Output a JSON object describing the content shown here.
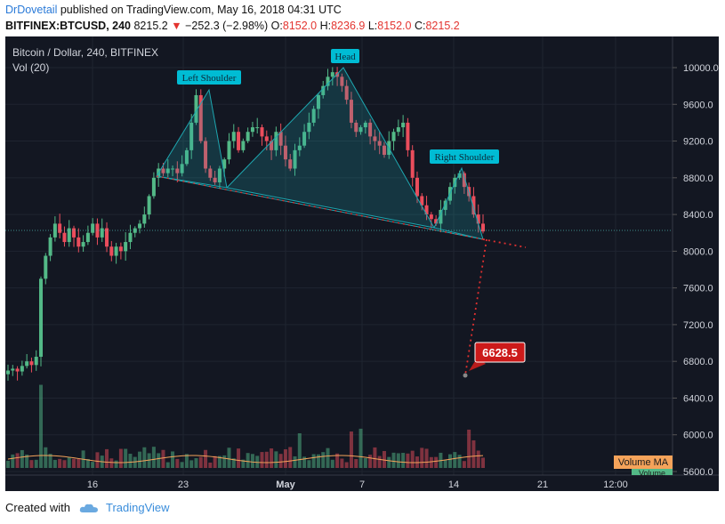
{
  "header": {
    "author": "DrDovetail",
    "published_text": "published on TradingView.com, May 16, 2018 04:31 UTC",
    "symbol": "BITFINEX:BTCUSD, 240",
    "last": "8215.2",
    "change": "−252.3 (−2.98%)",
    "o_label": "O:",
    "o_val": "8152.0",
    "h_label": "H:",
    "h_val": "8236.9",
    "l_label": "L:",
    "l_val": "8152.0",
    "c_label": "C:",
    "c_val": "8215.2"
  },
  "chart_data": {
    "type": "candlestick",
    "title": "Bitcoin / Dollar, 240, BITFINEX",
    "volume_label": "Vol (20)",
    "ylim": [
      5600,
      10400
    ],
    "y_ticks": [
      "10000.0",
      "9600.0",
      "9200.0",
      "8800.0",
      "8400.0",
      "8000.0",
      "7600.0",
      "7200.0",
      "6800.0",
      "6400.0",
      "6000.0",
      "5600.0"
    ],
    "x_ticks": [
      "16",
      "23",
      "May",
      "7",
      "14",
      "21",
      "12:00"
    ],
    "last_price": 8215.2,
    "approx_close_path": [
      6700,
      6720,
      6690,
      6750,
      6800,
      6760,
      6850,
      7700,
      7950,
      8150,
      8300,
      8200,
      8100,
      8250,
      8150,
      8050,
      8100,
      8200,
      8300,
      8150,
      8250,
      8050,
      7950,
      8050,
      8000,
      8100,
      8200,
      8250,
      8300,
      8400,
      8600,
      8800,
      8900,
      8850,
      8900,
      8900,
      8850,
      8950,
      9100,
      9400,
      9700,
      9200,
      8900,
      8800,
      8750,
      8900,
      9000,
      9200,
      9300,
      9100,
      9200,
      9300,
      9350,
      9350,
      9250,
      9200,
      9100,
      9300,
      9150,
      9000,
      8900,
      9100,
      9150,
      9300,
      9400,
      9550,
      9700,
      9800,
      9900,
      9950,
      9900,
      9800,
      9650,
      9400,
      9300,
      9350,
      9400,
      9250,
      9200,
      9150,
      9050,
      9200,
      9300,
      9350,
      9400,
      9100,
      8800,
      8600,
      8500,
      8400,
      8350,
      8300,
      8450,
      8550,
      8700,
      8800,
      8850,
      8700,
      8600,
      8400,
      8300,
      8215
    ],
    "pattern_labels": [
      "Left Shoulder",
      "Head",
      "Right Shoulder"
    ],
    "target_label": "6628.5",
    "volume_ma_label": "Volume MA",
    "volume_label_right": "Volume",
    "colors": {
      "up": "#53b987",
      "down": "#eb4d5c",
      "pattern": "#1ea7b0",
      "target": "#cc1a1a",
      "background": "#131722"
    }
  },
  "footer": {
    "created_with": "Created with",
    "brand": "TradingView"
  }
}
